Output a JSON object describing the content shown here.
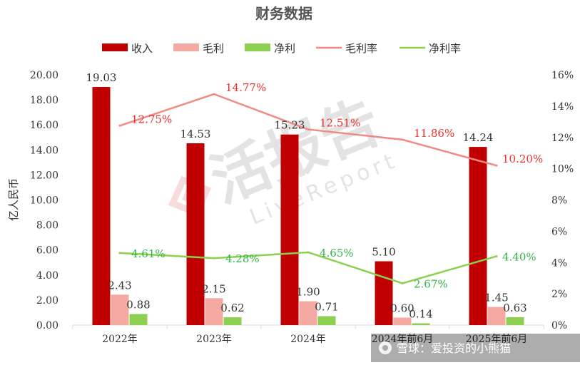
{
  "chart_data": {
    "type": "bar",
    "title": "财务数据",
    "ylabel": "亿人民币",
    "y2label": "",
    "categories": [
      "2022年",
      "2023年",
      "2024年",
      "2024年前6月",
      "2025年前6月"
    ],
    "series": [
      {
        "name": "收入",
        "kind": "bar",
        "axis": "left",
        "color": "#c00000",
        "values": [
          19.03,
          14.53,
          15.23,
          5.1,
          14.24
        ],
        "labels": [
          "19.03",
          "14.53",
          "15.23",
          "5.10",
          "14.24"
        ]
      },
      {
        "name": "毛利",
        "kind": "bar",
        "axis": "left",
        "color": "#f4a9a2",
        "values": [
          2.43,
          2.15,
          1.9,
          0.6,
          1.45
        ],
        "labels": [
          "2.43",
          "2.15",
          "1.90",
          "0.60",
          "1.45"
        ]
      },
      {
        "name": "净利",
        "kind": "bar",
        "axis": "left",
        "color": "#8dcf4f",
        "values": [
          0.88,
          0.62,
          0.71,
          0.14,
          0.63
        ],
        "labels": [
          "0.88",
          "0.62",
          "0.71",
          "0.14",
          "0.63"
        ]
      },
      {
        "name": "毛利率",
        "kind": "line",
        "axis": "right",
        "color": "#f08a85",
        "label_color": "#e8302e",
        "values": [
          12.75,
          14.77,
          12.51,
          11.86,
          10.2
        ],
        "labels": [
          "12.75%",
          "14.77%",
          "12.51%",
          "11.86%",
          "10.20%"
        ]
      },
      {
        "name": "净利率",
        "kind": "line",
        "axis": "right",
        "color": "#8bd14b",
        "label_color": "#34b44a",
        "values": [
          4.61,
          4.28,
          4.65,
          2.67,
          4.4
        ],
        "labels": [
          "4.61%",
          "4.28%",
          "4.65%",
          "2.67%",
          "4.40%"
        ]
      }
    ],
    "ylim": [
      0,
      20
    ],
    "yticks": [
      "0.00",
      "2.00",
      "4.00",
      "6.00",
      "8.00",
      "10.00",
      "12.00",
      "14.00",
      "16.00",
      "18.00",
      "20.00"
    ],
    "y2lim": [
      0,
      16
    ],
    "y2ticks": [
      "0%",
      "2%",
      "4%",
      "6%",
      "8%",
      "10%",
      "12%",
      "14%",
      "16%"
    ],
    "legend_position": "top",
    "grid": false
  },
  "watermark": {
    "logo_text": "活报告",
    "sub_text": "LiveReport"
  },
  "footer": {
    "text": "雪球：爱投资的小熊猫"
  }
}
